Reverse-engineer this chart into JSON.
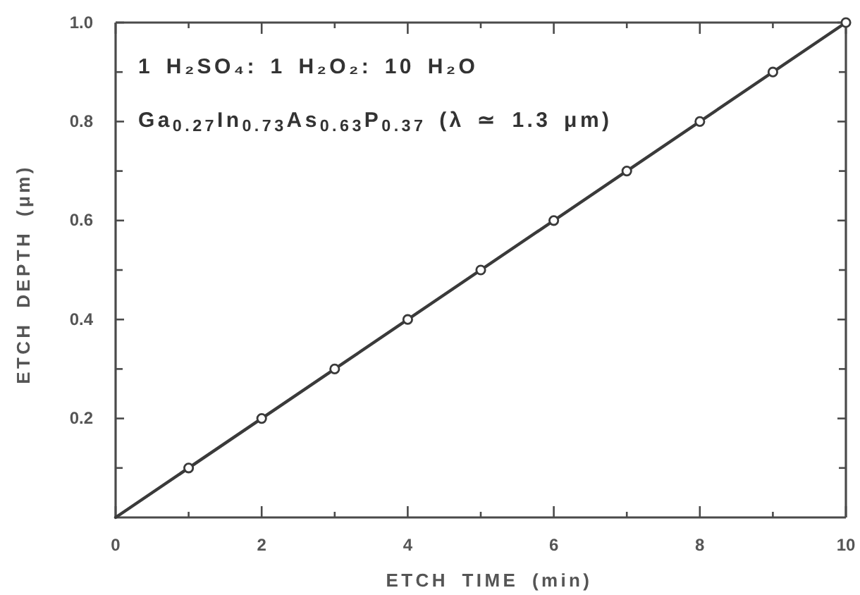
{
  "chart_data": {
    "type": "scatter",
    "xlabel": "ETCH TIME (min)",
    "ylabel": "ETCH DEPTH (μm)",
    "annotations": [
      "1 H₂SO₄: 1 H₂O₂: 10 H₂O",
      "Ga$_{0.27}$In$_{0.73}$As$_{0.63}$P$_{0.37}$ (λ ≃ 1.3 μm)"
    ],
    "xlim": [
      0,
      10
    ],
    "ylim": [
      0,
      1
    ],
    "xticks": [
      0,
      {
        "value": 1,
        "label": null
      },
      2,
      {
        "value": 3,
        "label": null
      },
      4,
      {
        "value": 5,
        "label": null
      },
      6,
      {
        "value": 7,
        "label": null
      },
      8,
      {
        "value": 9,
        "label": null
      },
      10
    ],
    "yticks": [
      {
        "value": 0.1,
        "label": null
      },
      0.2,
      {
        "value": 0.3,
        "label": null
      },
      0.4,
      {
        "value": 0.5,
        "label": null
      },
      0.6,
      {
        "value": 0.7,
        "label": null
      },
      0.8,
      {
        "value": 0.9,
        "label": null
      },
      {
        "value": 1,
        "label": "1.0"
      }
    ],
    "series": [
      {
        "type": "line",
        "x": [
          0,
          10
        ],
        "values": [
          0,
          1
        ],
        "color": "#3a3a3a",
        "marker": "none",
        "line_style": "solid"
      },
      {
        "x": [
          1,
          2,
          3,
          4,
          5,
          6,
          7,
          8,
          9,
          10
        ],
        "values": [
          0.1,
          0.2,
          0.3,
          0.4,
          0.5,
          0.6,
          0.7,
          0.8,
          0.9,
          1.0
        ],
        "color": "#3a3a3a",
        "marker": "circle"
      }
    ],
    "grid": false
  }
}
